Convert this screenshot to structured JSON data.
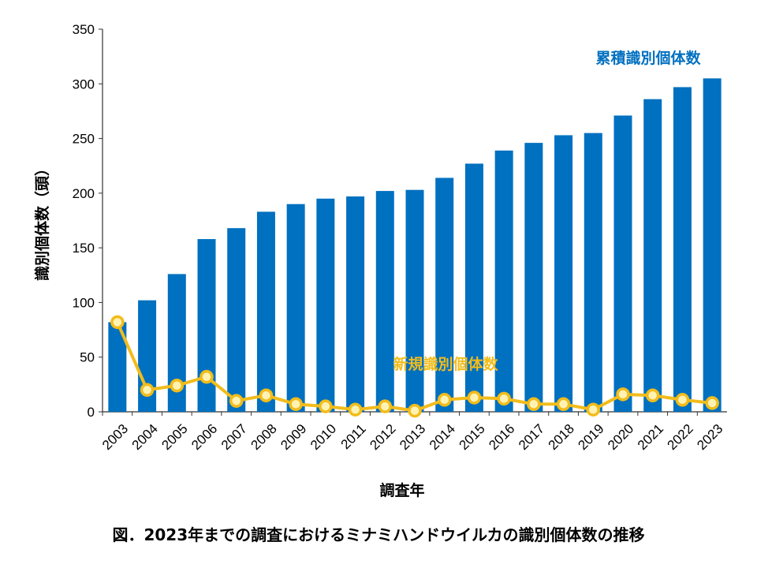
{
  "chart_data": {
    "type": "bar",
    "categories": [
      "2003",
      "2004",
      "2005",
      "2006",
      "2007",
      "2008",
      "2009",
      "2010",
      "2011",
      "2012",
      "2013",
      "2014",
      "2015",
      "2016",
      "2017",
      "2018",
      "2019",
      "2020",
      "2021",
      "2022",
      "2023"
    ],
    "series": [
      {
        "name": "累積識別個体数",
        "type": "bar",
        "color": "#0070C0",
        "values": [
          82,
          102,
          126,
          158,
          168,
          183,
          190,
          195,
          197,
          202,
          203,
          214,
          227,
          239,
          246,
          253,
          255,
          271,
          286,
          297,
          305
        ]
      },
      {
        "name": "新規識別個体数",
        "type": "line",
        "color": "#F2BC1B",
        "marker_fill": "#FFF2B3",
        "values": [
          82,
          20,
          24,
          32,
          10,
          15,
          7,
          5,
          2,
          5,
          1,
          11,
          13,
          12,
          7,
          7,
          2,
          16,
          15,
          11,
          8
        ]
      }
    ],
    "xlabel": "調査年",
    "ylabel": "識別個体数（頭）",
    "ylim": [
      0,
      350
    ],
    "yticks": [
      0,
      50,
      100,
      150,
      200,
      250,
      300,
      350
    ],
    "grid": false,
    "caption": "図．2023年までの調査におけるミナミハンドウイルカの識別個体数の推移"
  }
}
